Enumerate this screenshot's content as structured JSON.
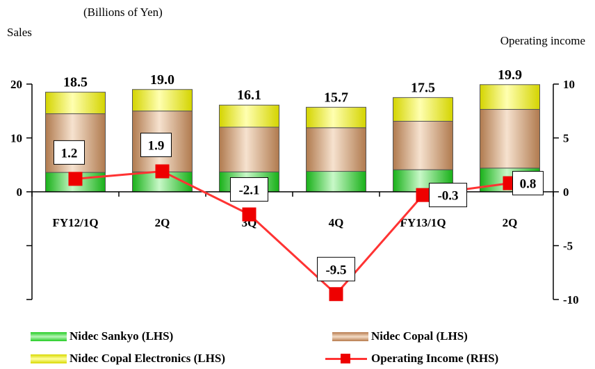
{
  "header": {
    "unit": "(Billions of Yen)",
    "left_title": "Sales",
    "right_title": "Operating income"
  },
  "chart_data": {
    "type": "bar",
    "stacked": true,
    "categories": [
      "FY12/1Q",
      "2Q",
      "3Q",
      "4Q",
      "FY13/1Q",
      "2Q"
    ],
    "series": [
      {
        "name": "Nidec Sankyo (LHS)",
        "axis": "left",
        "color": "#22cc22",
        "values": [
          3.6,
          3.7,
          3.7,
          3.8,
          4.1,
          4.4
        ]
      },
      {
        "name": "Nidec Copal (LHS)",
        "axis": "left",
        "color": "#d9a377",
        "values": [
          10.9,
          11.3,
          8.3,
          8.1,
          9.0,
          10.9
        ]
      },
      {
        "name": "Nidec Copal Electronics (LHS)",
        "axis": "left",
        "color": "#ffff00",
        "values": [
          4.0,
          4.0,
          4.1,
          3.8,
          4.4,
          4.6
        ]
      }
    ],
    "totals": [
      "18.5",
      "19.0",
      "16.1",
      "15.7",
      "17.5",
      "19.9"
    ],
    "line_series": {
      "name": "Operating Income (RHS)",
      "axis": "right",
      "color": "#ff3333",
      "marker_color": "#ee0000",
      "values": [
        1.2,
        1.9,
        -2.1,
        -9.5,
        -0.3,
        0.8
      ],
      "labels": [
        "1.2",
        "1.9",
        "-2.1",
        "-9.5",
        "-0.3",
        "0.8"
      ]
    },
    "left_axis": {
      "ylim": [
        -20,
        20
      ],
      "ticks": [
        "20",
        "10",
        "0"
      ]
    },
    "right_axis": {
      "ylim": [
        -10,
        10
      ],
      "ticks": [
        "10",
        "5",
        "0",
        "-5",
        "-10"
      ]
    },
    "grid": false,
    "legend_position": "bottom"
  },
  "legend": [
    {
      "label": "Nidec Sankyo (LHS)",
      "color": "#22cc22"
    },
    {
      "label": "Nidec Copal (LHS)",
      "color": "#d9a377"
    },
    {
      "label": "Nidec Copal Electronics (LHS)",
      "color": "#ffff00"
    },
    {
      "label": "Operating Income (RHS)",
      "color": "#ff3333"
    }
  ]
}
